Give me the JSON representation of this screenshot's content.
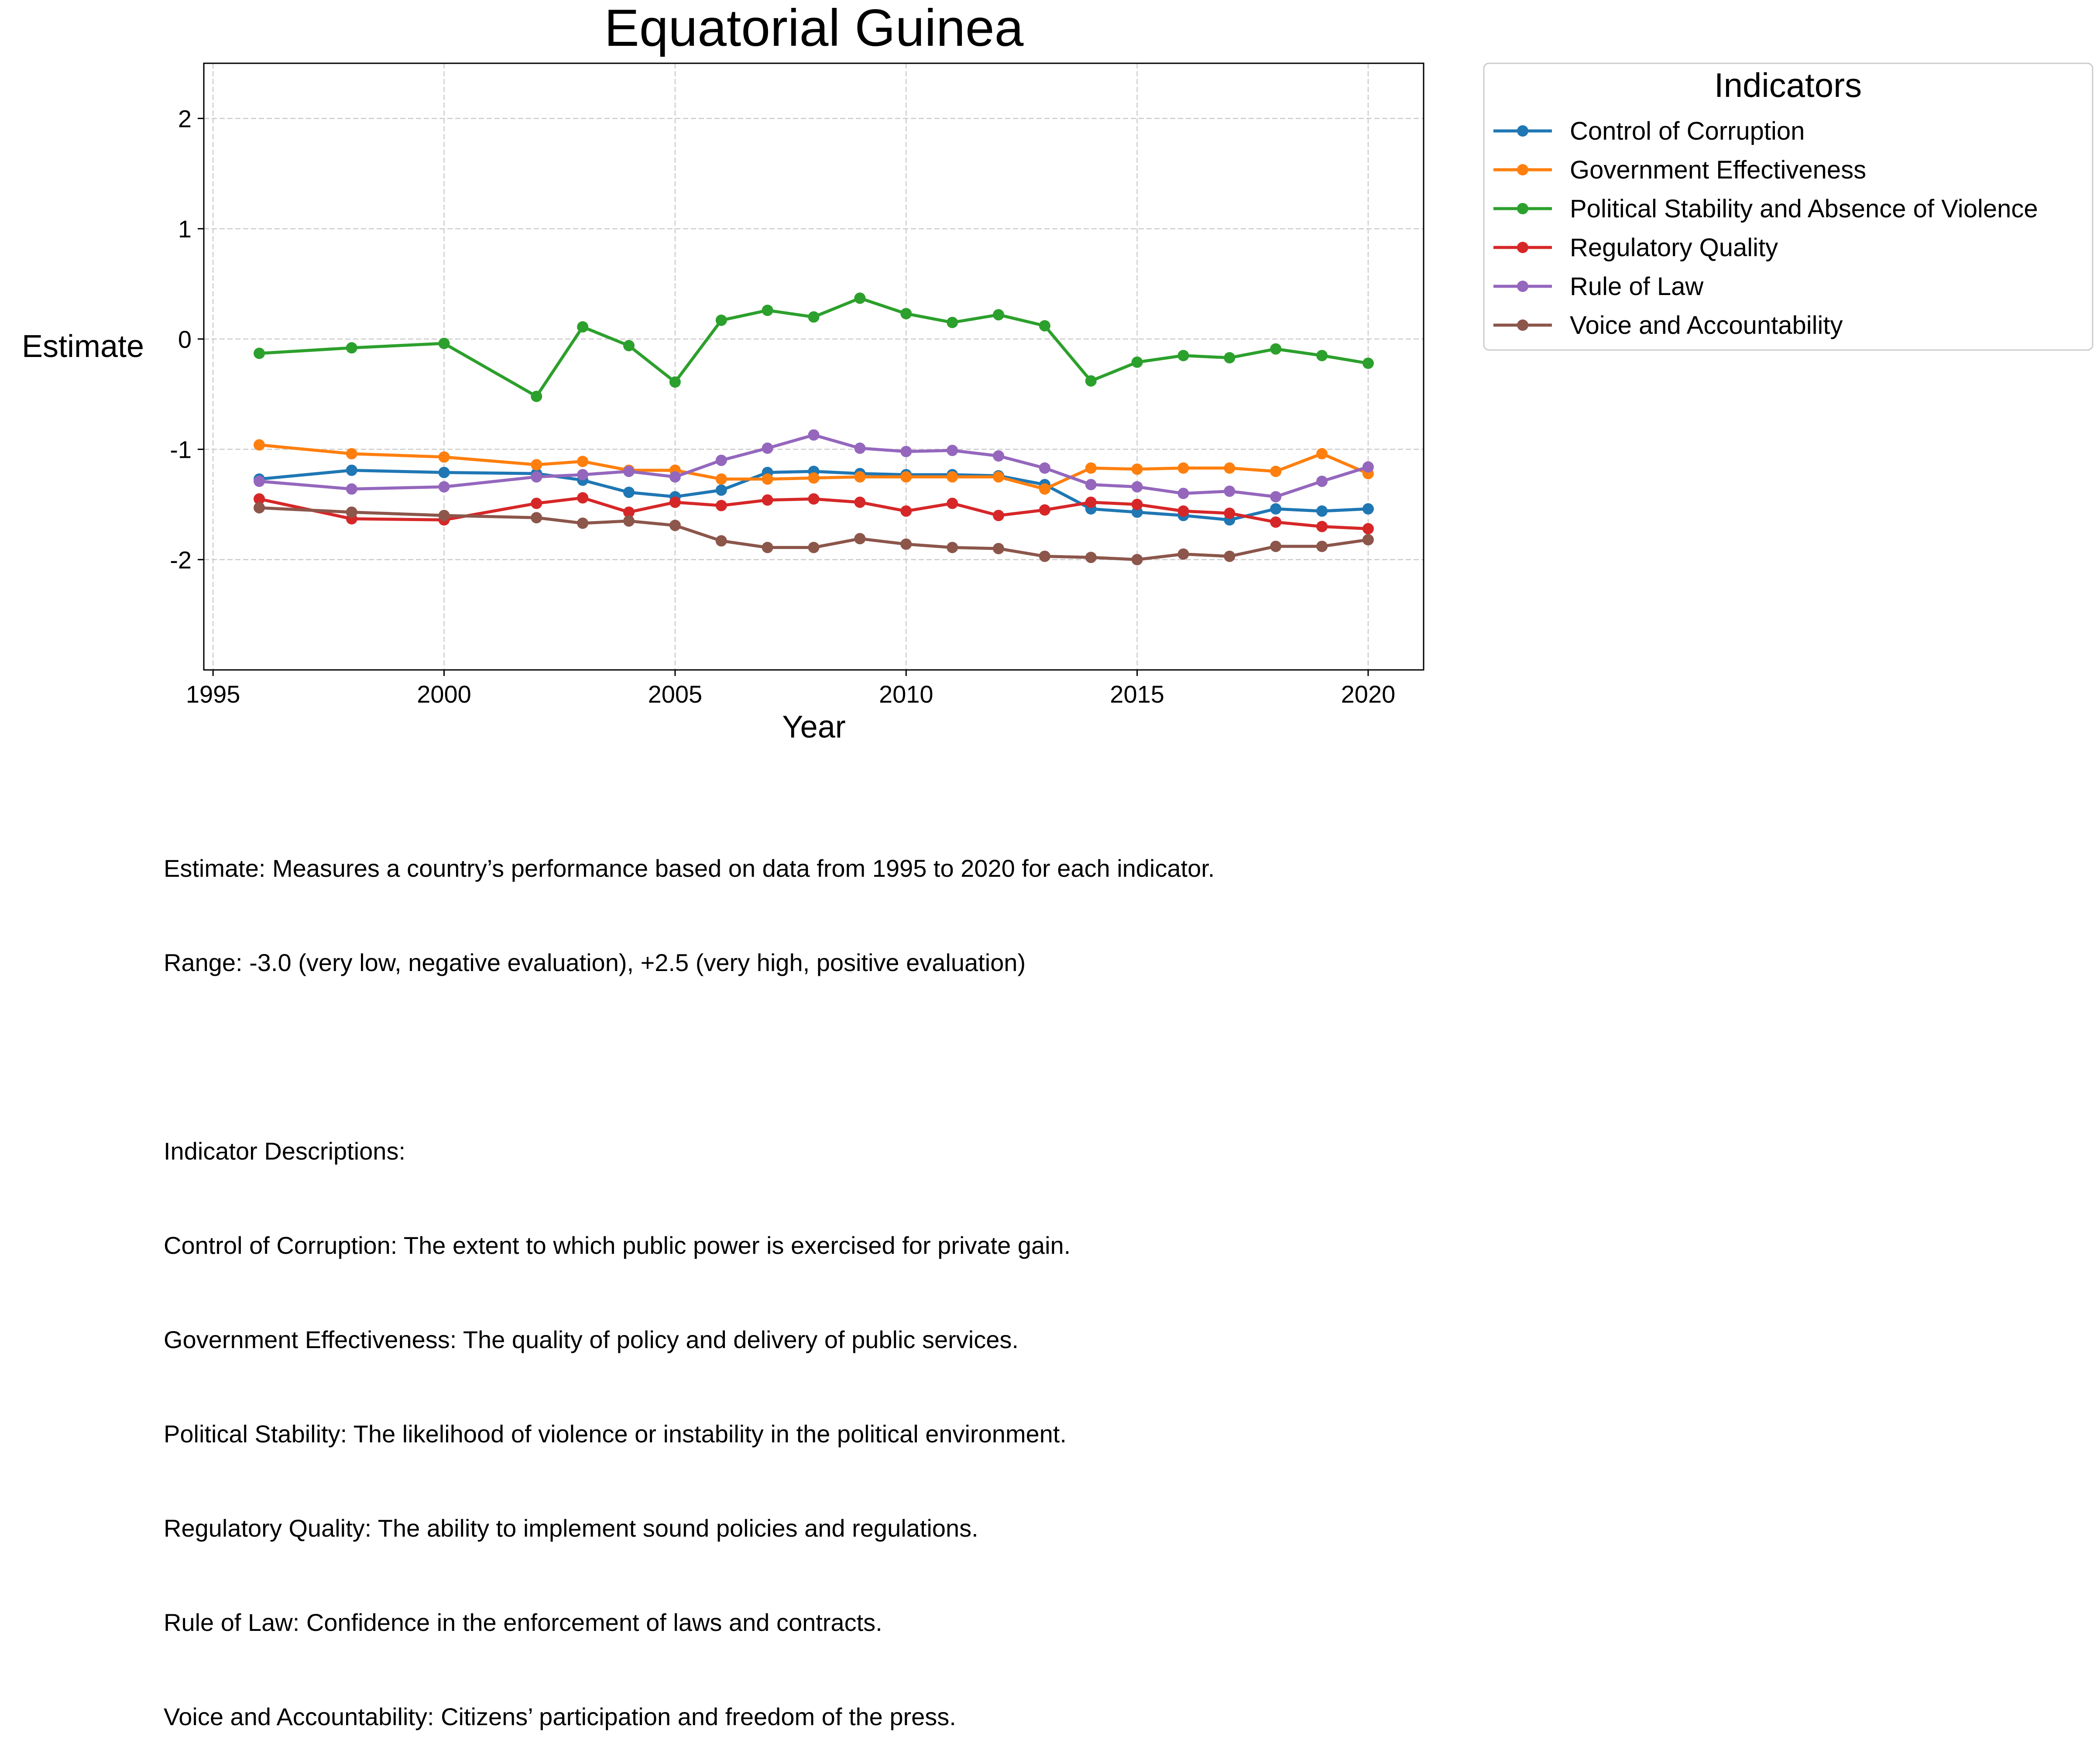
{
  "chart_data": {
    "type": "line",
    "title": "Equatorial Guinea",
    "xlabel": "Year",
    "ylabel": "Estimate",
    "xlim": [
      1994.8,
      2021.2
    ],
    "ylim": [
      -3.0,
      2.5
    ],
    "x_ticks": [
      1995,
      2000,
      2005,
      2010,
      2015,
      2020
    ],
    "y_ticks": [
      2,
      1,
      0,
      -1,
      -2
    ],
    "x_tick_labels": [
      "1995",
      "2000",
      "2005",
      "2010",
      "2015",
      "2020"
    ],
    "y_tick_labels": [
      "2",
      "1",
      "0",
      "-1",
      "-2"
    ],
    "grid": true,
    "legend_title": "Indicators",
    "legend_position": "outside-right-top",
    "x": [
      1996,
      1998,
      2000,
      2002,
      2003,
      2004,
      2005,
      2006,
      2007,
      2008,
      2009,
      2010,
      2011,
      2012,
      2013,
      2014,
      2015,
      2016,
      2017,
      2018,
      2019,
      2020
    ],
    "series": [
      {
        "name": "Control of Corruption",
        "color": "#1f77b4",
        "values": [
          -1.27,
          -1.19,
          -1.21,
          -1.22,
          -1.28,
          -1.39,
          -1.43,
          -1.37,
          -1.21,
          -1.2,
          -1.22,
          -1.23,
          -1.23,
          -1.24,
          -1.32,
          -1.54,
          -1.57,
          -1.6,
          -1.64,
          -1.54,
          -1.56,
          -1.54
        ]
      },
      {
        "name": "Government Effectiveness",
        "color": "#ff7f0e",
        "values": [
          -0.96,
          -1.04,
          -1.07,
          -1.14,
          -1.11,
          -1.19,
          -1.19,
          -1.27,
          -1.27,
          -1.26,
          -1.25,
          -1.25,
          -1.25,
          -1.25,
          -1.36,
          -1.17,
          -1.18,
          -1.17,
          -1.17,
          -1.2,
          -1.04,
          -1.22
        ]
      },
      {
        "name": "Political Stability and Absence of Violence",
        "color": "#2ca02c",
        "values": [
          -0.13,
          -0.08,
          -0.04,
          -0.52,
          0.11,
          -0.06,
          -0.39,
          0.17,
          0.26,
          0.2,
          0.37,
          0.23,
          0.15,
          0.22,
          0.12,
          -0.38,
          -0.21,
          -0.15,
          -0.17,
          -0.09,
          -0.15,
          -0.22
        ]
      },
      {
        "name": "Regulatory Quality",
        "color": "#d62728",
        "values": [
          -1.45,
          -1.63,
          -1.64,
          -1.49,
          -1.44,
          -1.57,
          -1.48,
          -1.51,
          -1.46,
          -1.45,
          -1.48,
          -1.56,
          -1.49,
          -1.6,
          -1.55,
          -1.48,
          -1.5,
          -1.56,
          -1.58,
          -1.66,
          -1.7,
          -1.72
        ]
      },
      {
        "name": "Rule of Law",
        "color": "#9467bd",
        "values": [
          -1.29,
          -1.36,
          -1.34,
          -1.25,
          -1.23,
          -1.2,
          -1.25,
          -1.1,
          -0.99,
          -0.87,
          -0.99,
          -1.02,
          -1.01,
          -1.06,
          -1.17,
          -1.32,
          -1.34,
          -1.4,
          -1.38,
          -1.43,
          -1.29,
          -1.16
        ]
      },
      {
        "name": "Voice and Accountability",
        "color": "#8c564b",
        "values": [
          -1.53,
          -1.57,
          -1.6,
          -1.62,
          -1.67,
          -1.65,
          -1.69,
          -1.83,
          -1.89,
          -1.89,
          -1.81,
          -1.86,
          -1.89,
          -1.9,
          -1.97,
          -1.98,
          -2.0,
          -1.95,
          -1.97,
          -1.88,
          -1.88,
          -1.82
        ]
      }
    ]
  },
  "notes": [
    "Estimate: Measures a country’s performance based on data from 1995 to 2020 for each indicator.",
    "Range: -3.0 (very low, negative evaluation), +2.5 (very high, positive evaluation)",
    "",
    "Indicator Descriptions:",
    "Control of Corruption: The extent to which public power is exercised for private gain.",
    "Government Effectiveness: The quality of policy and delivery of public services.",
    "Political Stability: The likelihood of violence or instability in the political environment.",
    "Regulatory Quality: The ability to implement sound policies and regulations.",
    "Rule of Law: Confidence in the enforcement of laws and contracts.",
    "Voice and Accountability: Citizens’ participation and freedom of the press."
  ]
}
